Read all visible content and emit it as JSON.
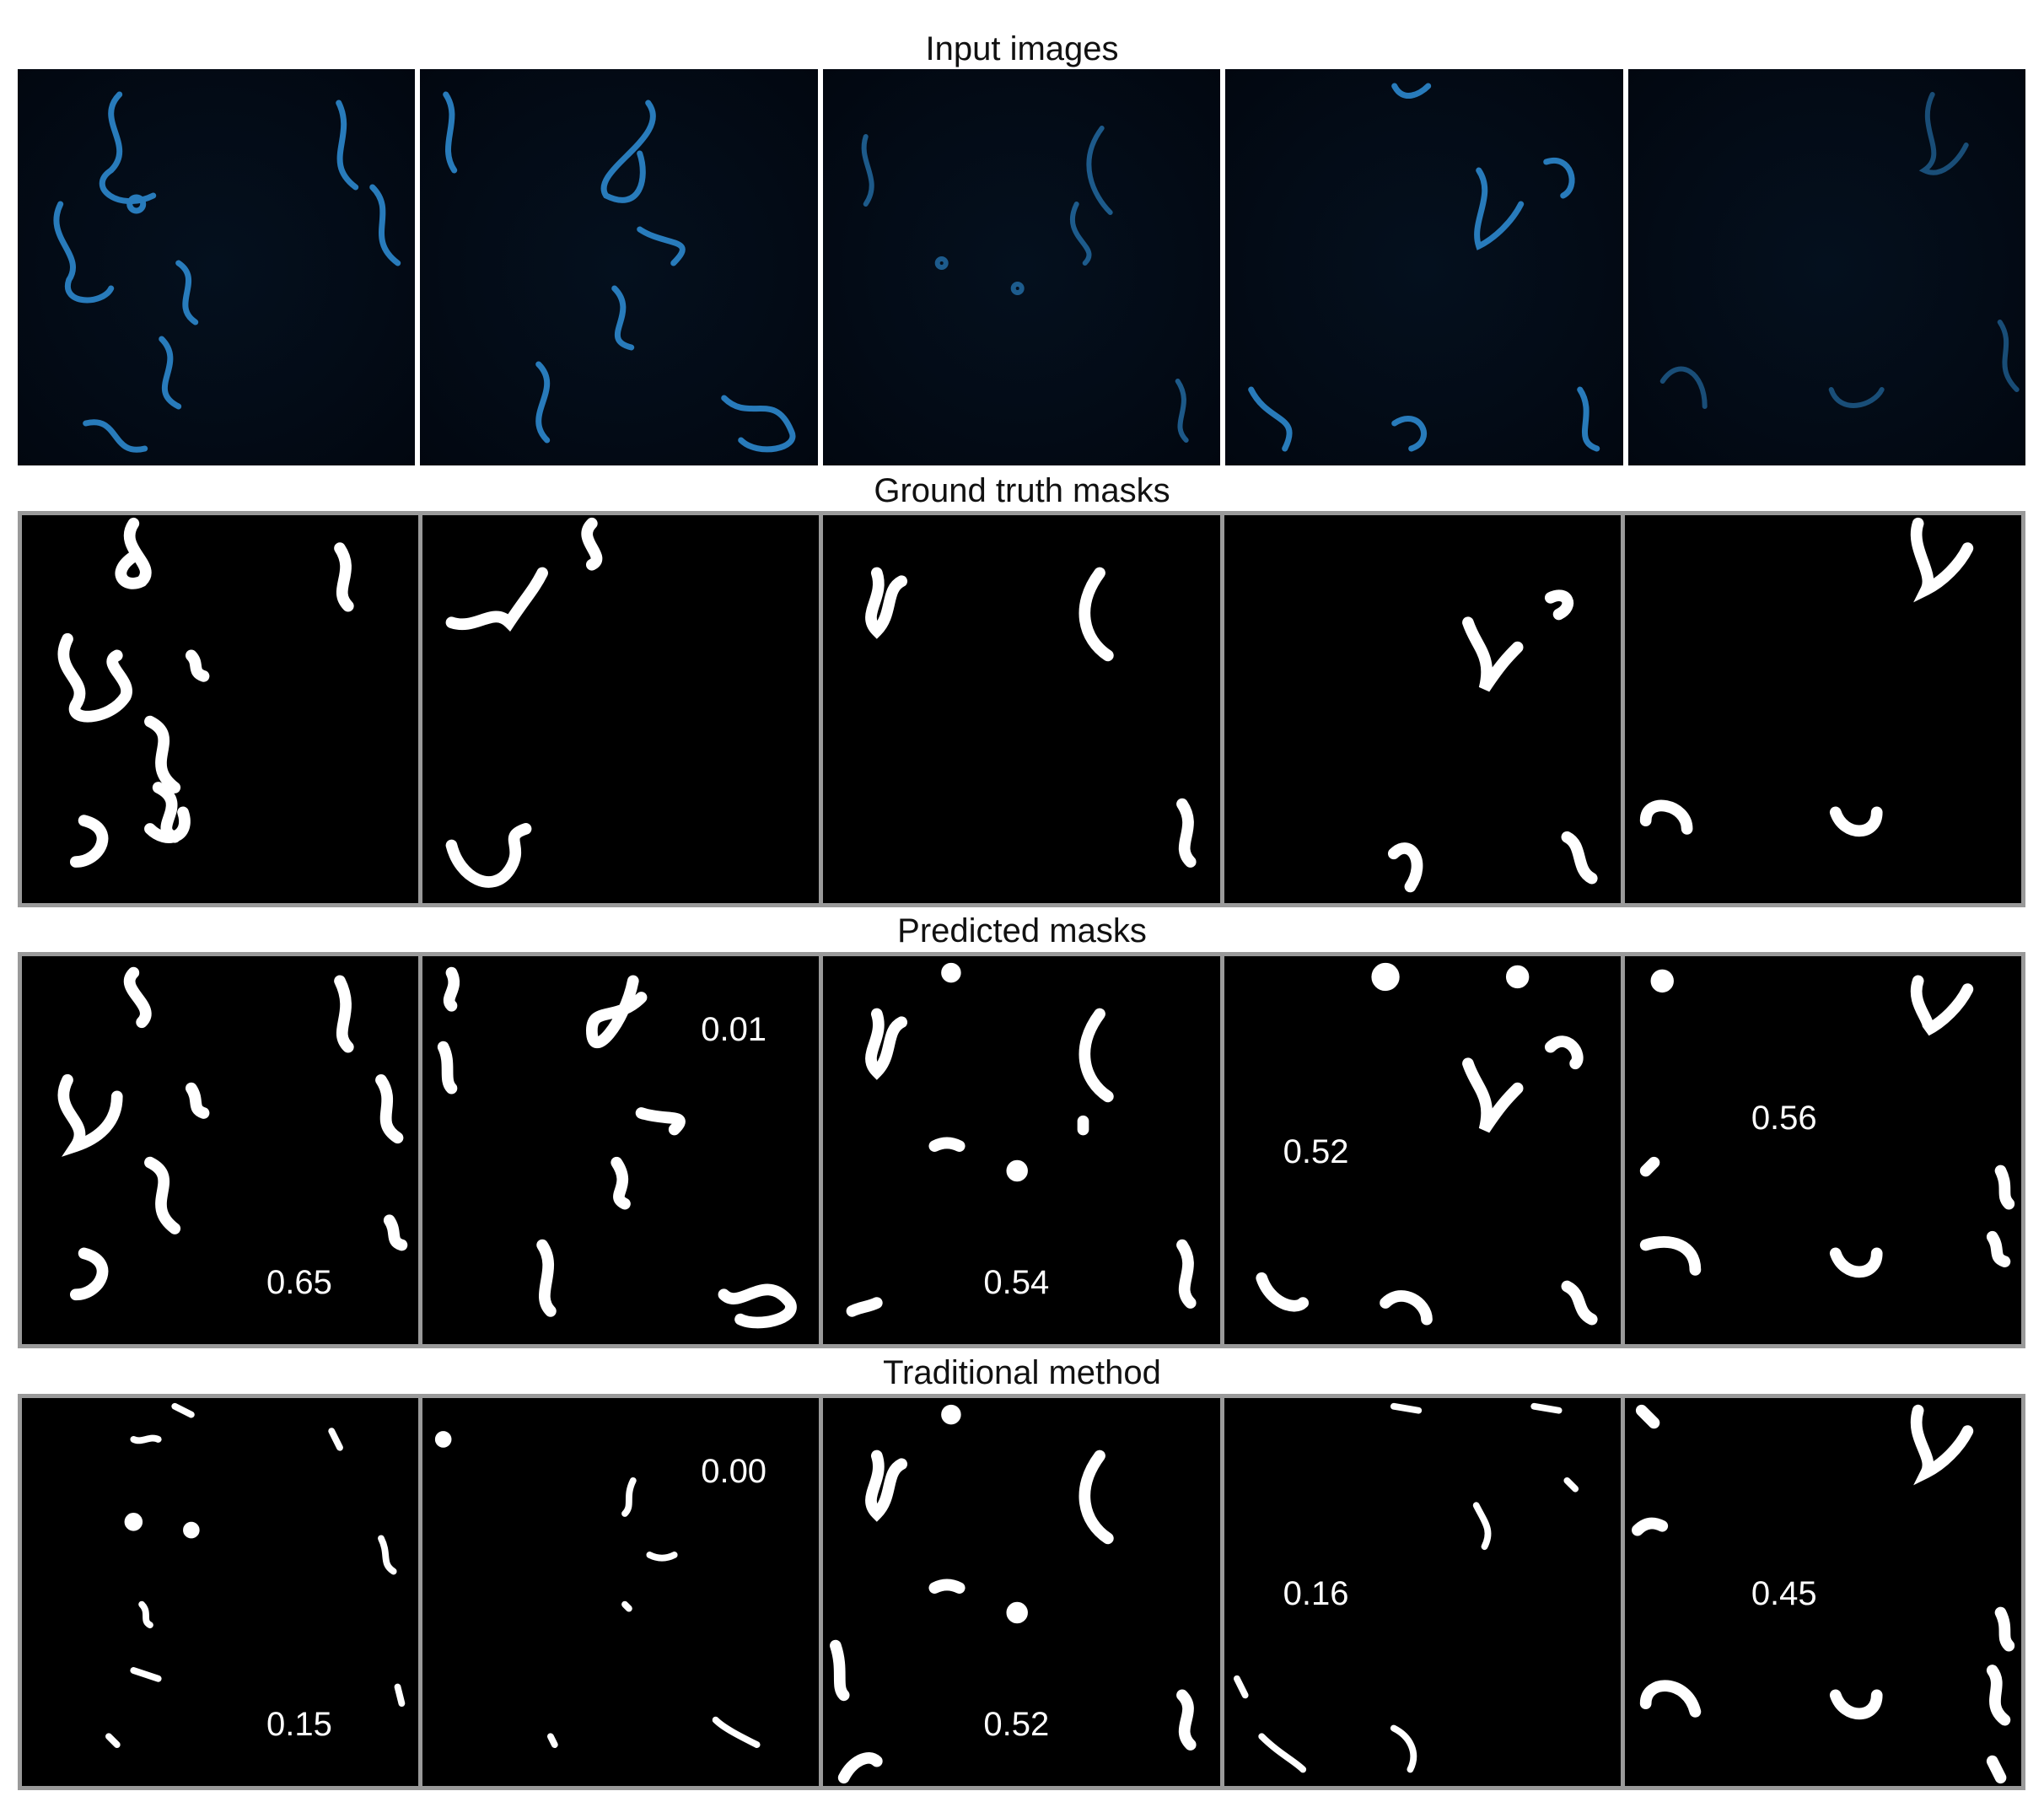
{
  "rows": [
    {
      "title": "Input images",
      "kind": "input",
      "scores": [
        "",
        "",
        "",
        "",
        ""
      ]
    },
    {
      "title": "Ground truth masks",
      "kind": "gt",
      "scores": [
        "",
        "",
        "",
        "",
        ""
      ]
    },
    {
      "title": "Predicted masks",
      "kind": "pred",
      "scores": [
        "0.65",
        "0.01",
        "0.54",
        "0.52",
        "0.56"
      ]
    },
    {
      "title": "Traditional method",
      "kind": "trad",
      "scores": [
        "0.15",
        "0.00",
        "0.52",
        "0.16",
        "0.45"
      ]
    }
  ],
  "colors": {
    "worm_blue": "#2f8fd8",
    "mask_white": "#ffffff",
    "frame_gray": "#9a9a9a"
  }
}
